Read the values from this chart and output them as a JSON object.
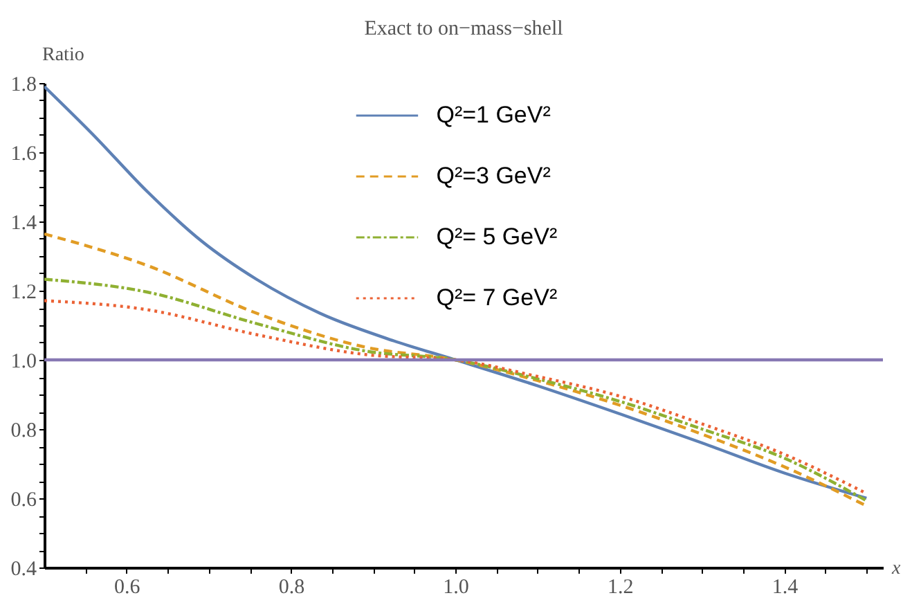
{
  "chart_data": {
    "type": "line",
    "title": "Exact to on−mass−shell",
    "xlabel": "x",
    "ylabel": "Ratio",
    "x": [
      0.5,
      0.558,
      0.625,
      0.692,
      0.758,
      0.835,
      0.925,
      1.0,
      1.1,
      1.2,
      1.3,
      1.4,
      1.5
    ],
    "series": [
      {
        "name": "Q²=1 GeV²",
        "color": "#5e81b5",
        "line_style": "solid",
        "values": [
          1.79,
          1.654,
          1.487,
          1.342,
          1.233,
          1.135,
          1.055,
          1.0,
          0.925,
          0.844,
          0.76,
          0.673,
          0.6
        ]
      },
      {
        "name": "Q²=3  GeV²",
        "color": "#e19c24",
        "line_style": "dashed",
        "x": [
          0.5,
          0.625,
          0.758,
          0.892,
          1.0,
          1.1,
          1.2,
          1.3,
          1.4,
          1.5
        ],
        "values": [
          1.364,
          1.273,
          1.135,
          1.036,
          1.0,
          0.94,
          0.869,
          0.785,
          0.691,
          0.578
        ]
      },
      {
        "name": "Q²= 5 GeV²",
        "color": "#8fb032",
        "line_style": "dashdot",
        "x": [
          0.5,
          0.625,
          0.758,
          0.892,
          1.0,
          1.1,
          1.2,
          1.3,
          1.4,
          1.5
        ],
        "values": [
          1.233,
          1.196,
          1.105,
          1.025,
          1.0,
          0.945,
          0.88,
          0.8,
          0.716,
          0.593
        ]
      },
      {
        "name": "Q²= 7 GeV²",
        "color": "#eb6235",
        "line_style": "dotted",
        "x": [
          0.5,
          0.625,
          0.758,
          0.892,
          1.0,
          1.1,
          1.2,
          1.3,
          1.4,
          1.5
        ],
        "values": [
          1.171,
          1.145,
          1.073,
          1.015,
          1.0,
          0.952,
          0.895,
          0.815,
          0.727,
          0.614
        ]
      }
    ],
    "ref_lines": [
      {
        "axis": "y",
        "value": 1,
        "color": "#8778b3"
      }
    ],
    "xlim": [
      0.5,
      1.52
    ],
    "ylim": [
      0.4,
      1.8
    ],
    "xticks": [
      {
        "value": 0.55,
        "label": null
      },
      0.6,
      {
        "value": 0.65,
        "label": null
      },
      {
        "value": 0.7,
        "label": null
      },
      {
        "value": 0.75,
        "label": null
      },
      0.8,
      {
        "value": 0.85,
        "label": null
      },
      {
        "value": 0.9,
        "label": null
      },
      {
        "value": 0.95,
        "label": null
      },
      {
        "value": 1,
        "label": "1.0"
      },
      {
        "value": 1.05,
        "label": null
      },
      {
        "value": 1.1,
        "label": null
      },
      {
        "value": 1.15,
        "label": null
      },
      1.2,
      {
        "value": 1.25,
        "label": null
      },
      {
        "value": 1.3,
        "label": null
      },
      {
        "value": 1.35,
        "label": null
      },
      1.4,
      {
        "value": 1.45,
        "label": null
      },
      {
        "value": 1.5,
        "label": null
      }
    ],
    "yticks": [
      0.4,
      {
        "value": 0.45,
        "label": null
      },
      {
        "value": 0.5,
        "label": null
      },
      {
        "value": 0.55,
        "label": null
      },
      0.6,
      {
        "value": 0.65,
        "label": null
      },
      {
        "value": 0.7,
        "label": null
      },
      {
        "value": 0.75,
        "label": null
      },
      0.8,
      {
        "value": 0.85,
        "label": null
      },
      {
        "value": 0.9,
        "label": null
      },
      {
        "value": 0.95,
        "label": null
      },
      {
        "value": 1,
        "label": "1.0"
      },
      {
        "value": 1.05,
        "label": null
      },
      {
        "value": 1.1,
        "label": null
      },
      {
        "value": 1.15,
        "label": null
      },
      1.2,
      {
        "value": 1.25,
        "label": null
      },
      {
        "value": 1.3,
        "label": null
      },
      {
        "value": 1.35,
        "label": null
      },
      1.4,
      {
        "value": 1.45,
        "label": null
      },
      {
        "value": 1.5,
        "label": null
      },
      {
        "value": 1.55,
        "label": null
      },
      1.6,
      {
        "value": 1.65,
        "label": null
      },
      {
        "value": 1.7,
        "label": null
      },
      {
        "value": 1.75,
        "label": null
      },
      1.8
    ],
    "grid": false,
    "legend": "top",
    "marker": "none"
  }
}
